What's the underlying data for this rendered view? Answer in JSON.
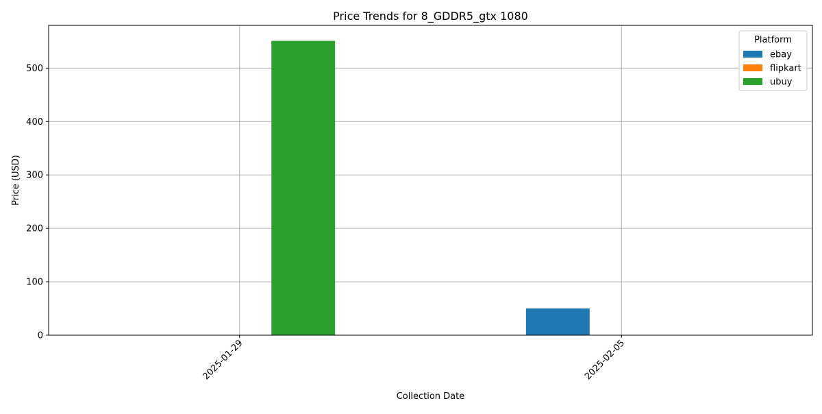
{
  "chart_data": {
    "type": "bar",
    "title": "Price Trends for 8_GDDR5_gtx 1080",
    "xlabel": "Collection Date",
    "ylabel": "Price (USD)",
    "categories": [
      "2025-01-29",
      "2025-02-05"
    ],
    "series": [
      {
        "name": "ebay",
        "color": "#1f77b4",
        "values": [
          null,
          50
        ]
      },
      {
        "name": "flipkart",
        "color": "#ff7f0e",
        "values": [
          null,
          null
        ]
      },
      {
        "name": "ubuy",
        "color": "#2ca02c",
        "values": [
          551,
          null
        ]
      }
    ],
    "ylim": [
      0,
      580
    ],
    "yticks": [
      0,
      100,
      200,
      300,
      400,
      500
    ],
    "grid": true,
    "legend": {
      "title": "Platform",
      "position": "top-right"
    }
  }
}
